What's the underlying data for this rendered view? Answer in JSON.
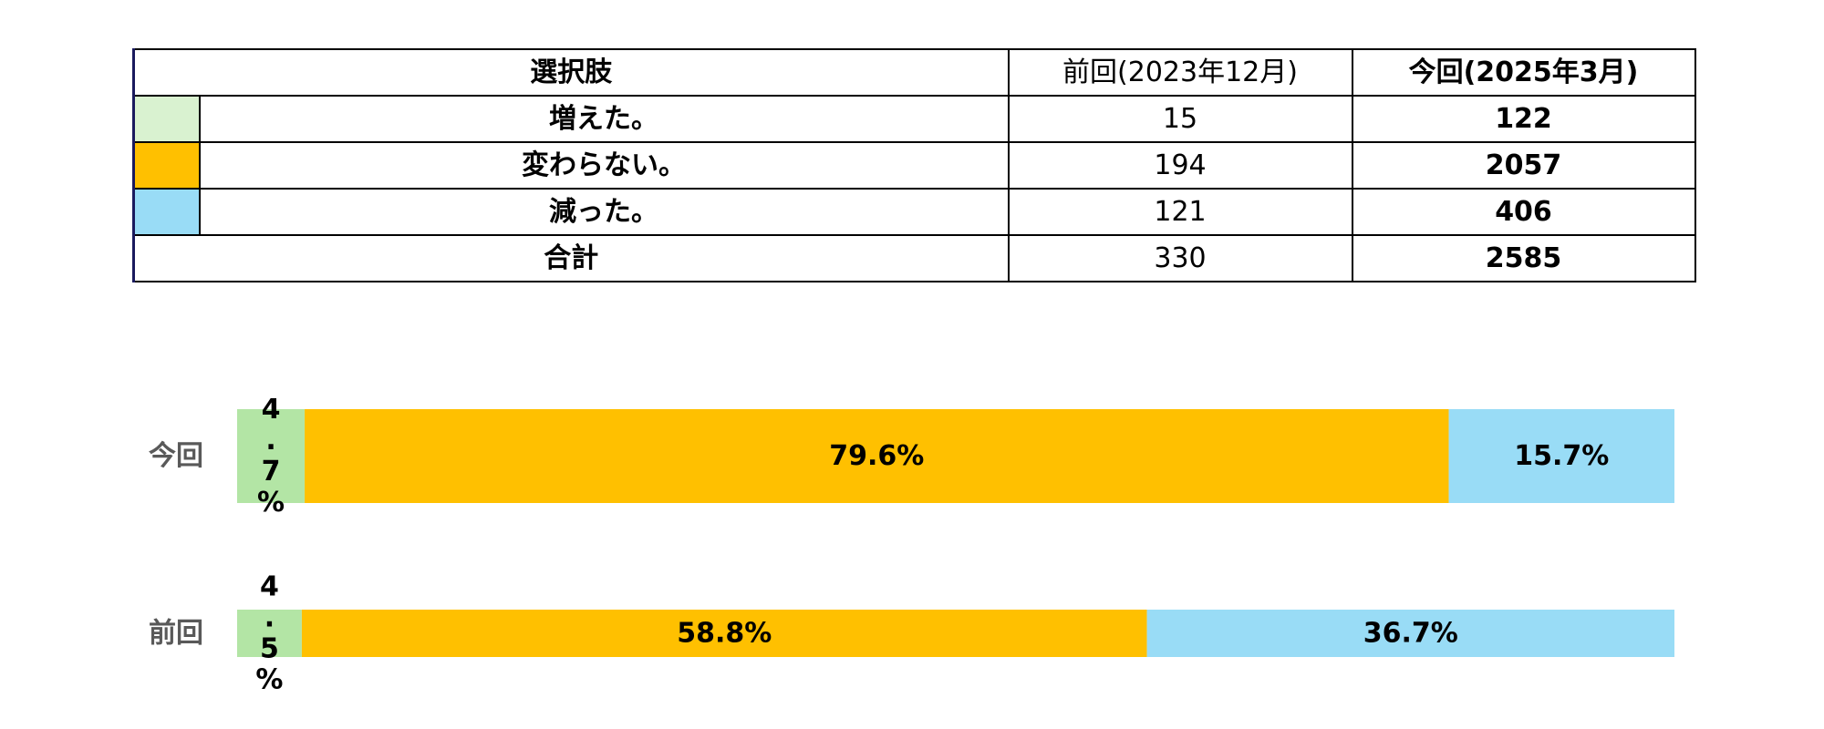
{
  "table": {
    "header": {
      "choice": "選択肢",
      "previous": "前回(2023年12月)",
      "current": "今回(2025年3月)"
    },
    "rows": [
      {
        "label": "増えた。",
        "color": "#D9F2D0",
        "previous": "15",
        "current": "122"
      },
      {
        "label": "変わらない。",
        "color": "#FFC000",
        "previous": "194",
        "current": "2057"
      },
      {
        "label": "減った。",
        "color": "#99DCF6",
        "previous": "121",
        "current": "406"
      }
    ],
    "total": {
      "label": "合計",
      "previous": "330",
      "current": "2585"
    }
  },
  "chart_data": {
    "type": "bar",
    "orientation": "horizontal",
    "stacked": "percent",
    "categories": [
      "今回",
      "前回"
    ],
    "series": [
      {
        "name": "増えた。",
        "color": "#B3E5A5",
        "values": [
          4.7,
          4.5
        ],
        "labels": [
          "4.7%",
          "4.5%"
        ]
      },
      {
        "name": "変わらない。",
        "color": "#FFC000",
        "values": [
          79.6,
          58.8
        ],
        "labels": [
          "79.6%",
          "58.8%"
        ]
      },
      {
        "name": "減った。",
        "color": "#99DCF6",
        "values": [
          15.7,
          36.7
        ],
        "labels": [
          "15.7%",
          "36.7%"
        ]
      }
    ],
    "xlim": [
      0,
      100
    ],
    "grid": false,
    "legend": "none"
  }
}
